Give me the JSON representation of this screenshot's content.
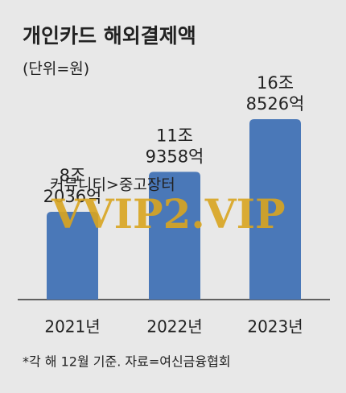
{
  "chart_data": {
    "type": "bar",
    "title": "개인카드 해외결제액",
    "subtitle": "(단위=원)",
    "categories": [
      "2021년",
      "2022년",
      "2023년"
    ],
    "values": [
      82036,
      119358,
      168526
    ],
    "value_labels": [
      [
        "8조",
        "2036억"
      ],
      [
        "11조",
        "9358억"
      ],
      [
        "16조",
        "8526억"
      ]
    ],
    "color": "#4a78b8",
    "note": "*각 해 12월 기준. 자료=여신금융협회"
  },
  "watermark": {
    "site": "커뮤니티>중고장터",
    "brand": "VVIP2.VIP"
  }
}
